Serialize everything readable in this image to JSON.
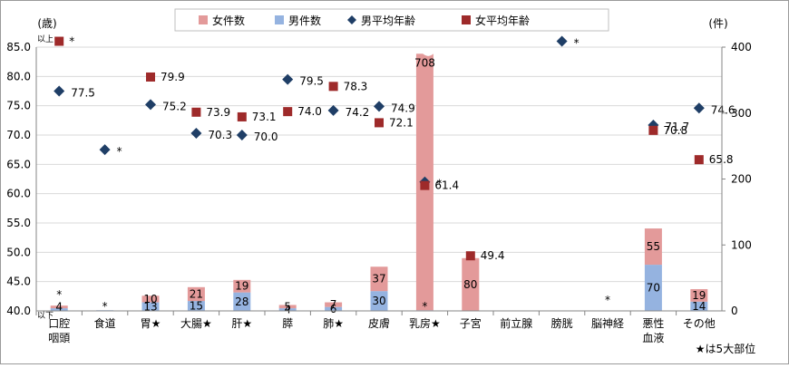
{
  "chart_data": {
    "type": "bar",
    "categories": [
      [
        "口腔",
        "咽頭"
      ],
      [
        "食道"
      ],
      [
        "胃★"
      ],
      [
        "大腸★"
      ],
      [
        "肝★"
      ],
      [
        "膵"
      ],
      [
        "肺★"
      ],
      [
        "皮膚"
      ],
      [
        "乳房★"
      ],
      [
        "子宮"
      ],
      [
        "前立腺"
      ],
      [
        "膀胱"
      ],
      [
        "脳神経"
      ],
      [
        "悪性",
        "血液"
      ],
      [
        "その他"
      ]
    ],
    "legend": [
      "女件数",
      "男件数",
      "男平均年齢",
      "女平均年齢"
    ],
    "left_axis": {
      "unit": "(歳)",
      "ylim": [
        40,
        85
      ],
      "ticks": [
        "40.0",
        "45.0",
        "50.0",
        "55.0",
        "60.0",
        "65.0",
        "70.0",
        "75.0",
        "80.0",
        "85.0"
      ],
      "top_note": "以上",
      "bottom_note": "以下"
    },
    "right_axis": {
      "unit": "(件)",
      "ylim": [
        0,
        400
      ],
      "ticks": [
        "0",
        "100",
        "200",
        "300",
        "400"
      ]
    },
    "bars": {
      "female": [
        4,
        null,
        10,
        21,
        19,
        5,
        7,
        37,
        708,
        80,
        null,
        null,
        null,
        55,
        19
      ],
      "male": [
        4,
        1,
        13,
        15,
        28,
        4,
        6,
        30,
        1,
        null,
        null,
        null,
        null,
        70,
        14
      ],
      "female_labels": [
        "4",
        "",
        "10",
        "21",
        "19",
        "5",
        "7",
        "37",
        "708",
        "80",
        "",
        "",
        "",
        "55",
        "19"
      ],
      "male_labels": [
        "",
        "*",
        "13",
        "15",
        "28",
        "4",
        "6",
        "30",
        "*",
        "",
        "",
        "",
        "",
        "70",
        "14"
      ],
      "top_marks": [
        "*",
        "",
        "",
        "",
        "",
        "",
        "",
        "",
        "",
        "",
        "",
        "",
        "*",
        "",
        ""
      ]
    },
    "male_avg_age": [
      77.5,
      67.5,
      75.2,
      70.3,
      70.0,
      79.5,
      74.2,
      74.9,
      62.0,
      null,
      null,
      86.0,
      null,
      71.7,
      74.6
    ],
    "male_age_labels": [
      "77.5",
      "*",
      "75.2",
      "70.3",
      "70.0",
      "79.5",
      "74.2",
      "74.9",
      "*",
      "",
      "",
      "*",
      "",
      "71.7",
      "74.6"
    ],
    "female_avg_age": [
      86.0,
      null,
      79.9,
      73.9,
      73.1,
      74.0,
      78.3,
      72.1,
      61.4,
      49.4,
      null,
      null,
      null,
      70.8,
      65.8
    ],
    "female_age_labels": [
      "*",
      "",
      "79.9",
      "73.9",
      "73.1",
      "74.0",
      "78.3",
      "72.1",
      "61.4",
      "49.4",
      "",
      "",
      "",
      "70.8",
      "65.8"
    ],
    "footnote": "★は5大部位",
    "colors": {
      "female_bar": "#e39a9a",
      "male_bar": "#95b3e0",
      "male_marker": "#1f3e66",
      "female_marker": "#9e2a2a"
    }
  }
}
